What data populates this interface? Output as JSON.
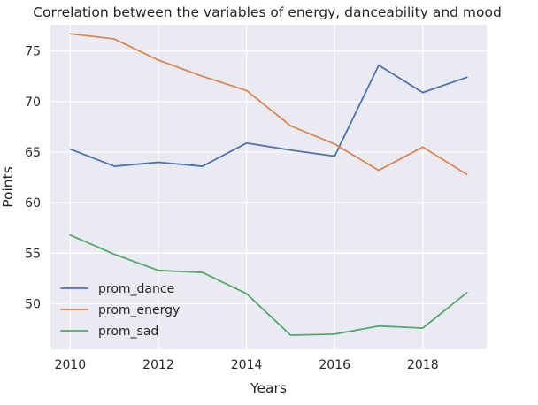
{
  "chart_data": {
    "type": "line",
    "title": "Correlation between the variables of energy, danceability and mood",
    "xlabel": "Years",
    "ylabel": "Points",
    "x": [
      2010,
      2011,
      2012,
      2013,
      2014,
      2015,
      2016,
      2017,
      2018,
      2019
    ],
    "x_ticks": [
      2010,
      2012,
      2014,
      2016,
      2018
    ],
    "y_ticks": [
      50,
      55,
      60,
      65,
      70,
      75
    ],
    "xlim": [
      2009.55,
      2019.45
    ],
    "ylim": [
      45.5,
      77.6
    ],
    "grid": true,
    "legend_position": "lower-left",
    "series": [
      {
        "name": "prom_dance",
        "color": "#4c72b0",
        "values": [
          65.3,
          63.6,
          64.0,
          63.6,
          65.9,
          65.2,
          64.6,
          73.6,
          70.9,
          72.4
        ]
      },
      {
        "name": "prom_energy",
        "color": "#dd8452",
        "values": [
          76.7,
          76.2,
          74.1,
          72.5,
          71.1,
          67.6,
          65.8,
          63.2,
          65.5,
          62.8
        ]
      },
      {
        "name": "prom_sad",
        "color": "#55a868",
        "values": [
          56.8,
          54.9,
          53.3,
          53.1,
          51.0,
          46.9,
          47.0,
          47.8,
          47.6,
          51.1
        ]
      }
    ]
  }
}
